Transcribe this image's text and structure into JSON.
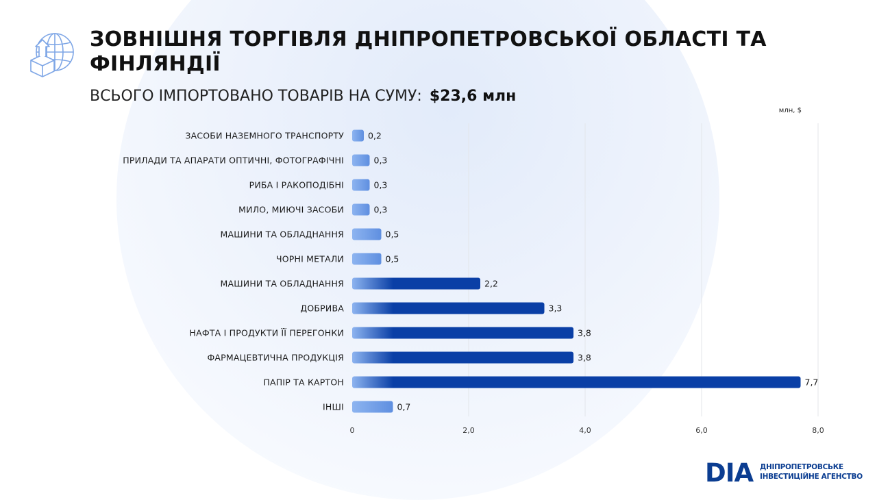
{
  "header": {
    "title": "ЗОВНІШНЯ ТОРГІВЛЯ ДНІПРОПЕТРОВСЬКОЇ ОБЛАСТІ ТА ФІНЛЯНДІЇ",
    "subtitle": "ВСЬОГО ІМПОРТОВАНО ТОВАРІВ НА СУМУ:",
    "total": "$23,6 млн",
    "icon": "globe-import-icon"
  },
  "chart_data": {
    "type": "bar",
    "orientation": "horizontal",
    "unit_label": "млн, $",
    "categories": [
      "ЗАСОБИ НАЗЕМНОГО ТРАНСПОРТУ",
      "ПРИЛАДИ ТА АПАРАТИ ОПТИЧНІ, ФОТОГРАФІЧНІ",
      "РИБА І РАКОПОДІБНІ",
      "МИЛО, МИЮЧІ ЗАСОБИ",
      "МАШИНИ ТА ОБЛАДНАННЯ",
      "ЧОРНІ МЕТАЛИ",
      "МАШИНИ ТА ОБЛАДНАННЯ",
      "ДОБРИВА",
      "НАФТА І ПРОДУКТИ ЇЇ ПЕРЕГОНКИ",
      "ФАРМАЦЕВТИЧНА ПРОДУКЦІЯ",
      "ПАПІР ТА КАРТОН",
      "ІНШІ"
    ],
    "values": [
      0.2,
      0.3,
      0.3,
      0.3,
      0.5,
      0.5,
      2.2,
      3.3,
      3.8,
      3.8,
      7.7,
      0.7
    ],
    "value_labels": [
      "0,2",
      "0,3",
      "0,3",
      "0,3",
      "0,5",
      "0,5",
      "2,2",
      "3,3",
      "3,8",
      "3,8",
      "7,7",
      "0,7"
    ],
    "xlim": [
      0,
      8
    ],
    "x_ticks": [
      "0",
      "2,0",
      "4,0",
      "6,0",
      "8,0"
    ],
    "x_tick_values": [
      0,
      2,
      4,
      6,
      8
    ],
    "grid": true,
    "colors": {
      "bar_dark": "#0a3fa6",
      "bar_light": "#8db4f0",
      "grid": "#e3e6ea"
    }
  },
  "logo": {
    "mark": "DIA",
    "line1": "ДНІПРОПЕТРОВСЬКЕ",
    "line2": "ІНВЕСТИЦІЙНЕ АГЕНСТВО",
    "color": "#0b3d91"
  }
}
